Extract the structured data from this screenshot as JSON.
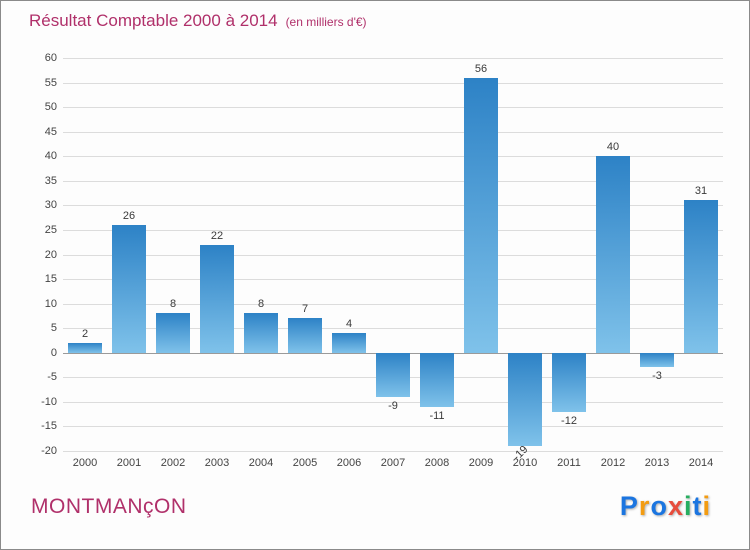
{
  "title": "Résultat Comptable 2000 à 2014",
  "subtitle": "(en milliers d'€)",
  "footer": {
    "name": "MONTMANçON"
  },
  "logo": {
    "letters": [
      {
        "ch": "P",
        "color": "#1b75e0"
      },
      {
        "ch": "r",
        "color": "#f39c12"
      },
      {
        "ch": "o",
        "color": "#1b75e0"
      },
      {
        "ch": "x",
        "color": "#e74c3c"
      },
      {
        "ch": "i",
        "color": "#27ae60"
      },
      {
        "ch": "t",
        "color": "#1b75e0"
      },
      {
        "ch": "i",
        "color": "#f39c12"
      }
    ]
  },
  "colors": {
    "title": "#b0306a",
    "bar_top": "#2d82c6",
    "bar_bottom": "#7fc2ea",
    "gridline": "#dcdcdc",
    "zero_line": "#9a9a9a",
    "tick_text": "#444444",
    "value_text": "#3a3a3a"
  },
  "chart_data": {
    "type": "bar",
    "title": "Résultat Comptable 2000 à 2014",
    "subtitle": "(en milliers d'€)",
    "categories": [
      "2000",
      "2001",
      "2002",
      "2003",
      "2004",
      "2005",
      "2006",
      "2007",
      "2008",
      "2009",
      "2010",
      "2011",
      "2012",
      "2013",
      "2014"
    ],
    "values": [
      2,
      26,
      8,
      22,
      8,
      7,
      4,
      -9,
      -11,
      56,
      -19,
      -12,
      40,
      -3,
      31
    ],
    "xlabel": "",
    "ylabel": "",
    "ylim": [
      -20,
      60
    ],
    "ytick_step": 5,
    "grid": true,
    "legend": "none"
  }
}
